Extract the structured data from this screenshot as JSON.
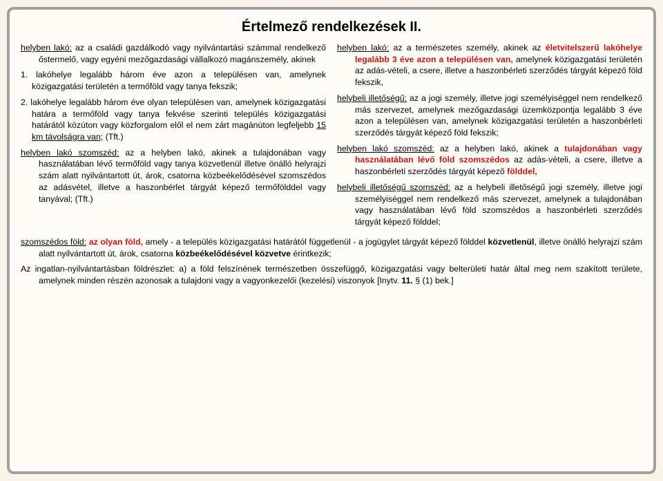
{
  "title": "Értelmező rendelkezések II.",
  "left": {
    "p1_lead": "helyben lakó:",
    "p1_rest": " az a családi gazdálkodó vagy nyilvántartási számmal rendelkező őstermelő, vagy egyéni mezőgazdasági vállalkozó magánszemély, akinek",
    "p1_li1": "1. lakóhelye legalább három éve azon a településen van, amelynek közigazgatási területén a termőföld vagy tanya fekszik;",
    "p1_li2a": "2. lakóhelye legalább három éve olyan településen van, amelynek közigazgatási határa a termőföld vagy tanya fekvése szerinti település közigazgatási határától közúton vagy közforgalom elől el nem zárt magánúton legfeljebb ",
    "p1_li2_u": "15 km távolságra van;",
    "p1_li2b": " (Tft.)",
    "p2_lead": "helyben lakó szomszéd:",
    "p2_rest": " az a helyben lakó, akinek a tulajdonában vagy használatában lévő termőföld vagy tanya közvetlenül illetve önálló helyrajzi szám alatt nyilvántartott út, árok, csatorna közbeékelődésével szomszédos az adásvétel, illetve a haszonbérlet tárgyát képező termőfölddel vagy tanyával; (Tft.)"
  },
  "right": {
    "p1_lead": "helyben lakó:",
    "p1_rest_a": " az a természetes személy, akinek az ",
    "p1_red_b": "életvitelszerű lakóhelye legalább 3 éve azon a településen van,",
    "p1_rest_c": " amelynek közigazgatási területén az adás-vételi, a csere, illetve a haszonbérleti szerződés tárgyát képező föld fekszik,",
    "p2_lead": "helybeli illetőségű:",
    "p2_rest": " az a jogi személy, illetve jogi személyiséggel nem rendelkező más szervezet, amelynek mezőgazdasági üzemközpontja legalább 3 éve azon a településen van, amelynek közigazgatási területén a haszonbérleti szerződés tárgyát képező föld fekszik;",
    "p3_lead": "helyben lakó szomszéd:",
    "p3_a": " az a helyben lakó, akinek a ",
    "p3_red_b": "tulajdonában vagy használatában lévő föld szomszédos",
    "p3_c": " az adás-vételi, a csere, illetve a haszonbérleti szerződés tárgyát képező ",
    "p3_red_d": "földdel,",
    "p4_lead": "helybeli illetőségű szomszéd:",
    "p4_rest": " az a helybeli illetőségű jogi személy, illetve jogi személyiséggel nem rendelkező más szervezet, amelynek a tulajdonában vagy használatában lévő föld szomszédos a haszonbérleti szerződés tárgyát képező földdel;"
  },
  "bottom": {
    "p1_lead": "szomszédos föld:",
    "p1_red_a": " az olyan föld,",
    "p1_b": " amely - a település közigazgatási határától függetlenül - a jogügylet tárgyát képező földdel ",
    "p1_bold_c": "közvetlenül",
    "p1_d": ", illetve önálló helyrajzi szám alatt nyilvántartott út, árok, csatorna ",
    "p1_bold_e": "közbeékelődésével közvetve",
    "p1_f": " érintkezik;",
    "p2": "Az ingatlan-nyilvántartásban földrészlet: a) a föld felszínének természetben összefüggő, közigazgatási vagy belterületi határ által meg nem szakított területe, amelynek minden részén azonosak a tulajdoni vagy a vagyonkezelői (kezelési) viszonyok [Inytv. ",
    "p2_bold": "11.",
    "p2_end": " § (1) bek.]"
  }
}
